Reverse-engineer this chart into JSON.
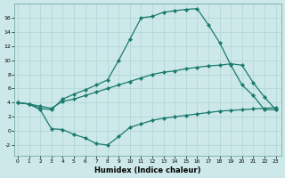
{
  "xlabel": "Humidex (Indice chaleur)",
  "bg_color": "#cce8e8",
  "line_color": "#1a7a6e",
  "grid_color": "#b0d4d4",
  "x_ticks": [
    0,
    1,
    2,
    3,
    4,
    5,
    6,
    7,
    8,
    9,
    10,
    11,
    12,
    13,
    14,
    15,
    16,
    17,
    18,
    19,
    20,
    21,
    22,
    23
  ],
  "y_ticks": [
    -2,
    0,
    2,
    4,
    6,
    8,
    10,
    12,
    14,
    16
  ],
  "ylim": [
    -3.5,
    18
  ],
  "xlim": [
    -0.3,
    23.5
  ],
  "series": [
    {
      "x": [
        0,
        1,
        2,
        3,
        4,
        5,
        6,
        7,
        8,
        9,
        10,
        11,
        12,
        13,
        14,
        15,
        16,
        17,
        18,
        19,
        20,
        21,
        22,
        23
      ],
      "y": [
        4.0,
        3.8,
        3.2,
        3.0,
        4.5,
        5.2,
        5.8,
        6.5,
        7.2,
        10.0,
        13.0,
        16.0,
        16.2,
        16.8,
        17.0,
        17.2,
        17.3,
        15.0,
        12.5,
        9.3,
        6.5,
        5.0,
        3.0,
        3.0
      ]
    },
    {
      "x": [
        0,
        1,
        2,
        3,
        4,
        5,
        6,
        7,
        8,
        9,
        10,
        11,
        12,
        13,
        14,
        15,
        16,
        17,
        18,
        19,
        20,
        21,
        22,
        23
      ],
      "y": [
        4.0,
        3.8,
        3.5,
        3.2,
        4.2,
        4.5,
        5.0,
        5.5,
        6.0,
        6.5,
        7.0,
        7.5,
        8.0,
        8.3,
        8.5,
        8.8,
        9.0,
        9.2,
        9.3,
        9.5,
        9.3,
        6.8,
        4.8,
        3.0
      ]
    },
    {
      "x": [
        0,
        1,
        2,
        3,
        4,
        5,
        6,
        7,
        8,
        9,
        10,
        11,
        12,
        13,
        14,
        15,
        16,
        17,
        18,
        19,
        20,
        21,
        22,
        23
      ],
      "y": [
        4.0,
        3.8,
        3.0,
        0.3,
        0.2,
        -0.5,
        -1.0,
        -1.8,
        -2.0,
        -0.8,
        0.5,
        1.0,
        1.5,
        1.8,
        2.0,
        2.2,
        2.4,
        2.6,
        2.8,
        2.9,
        3.0,
        3.1,
        3.2,
        3.3
      ]
    }
  ]
}
